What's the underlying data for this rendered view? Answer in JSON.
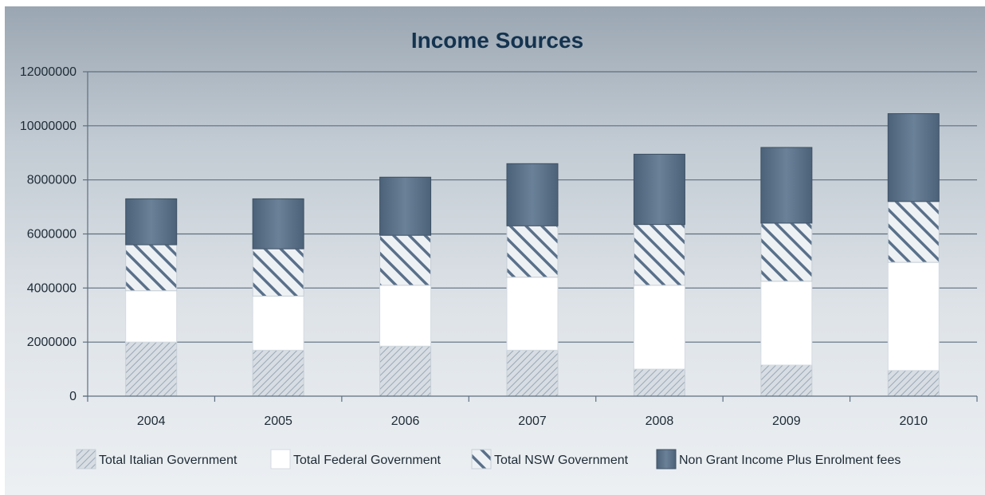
{
  "colors": {
    "italian_fill": "#d7dde3",
    "italian_hatch": "#9aa8b5",
    "federal_fill": "#ffffff",
    "nsw_fill": "#eef1f4",
    "nsw_hatch": "#59708a",
    "nongrant_fill": "#5a7189",
    "gridline": "#5e6f80",
    "axis": "#5e6f80"
  },
  "chart_data": {
    "type": "bar",
    "stacked": true,
    "title": "Income Sources",
    "xlabel": "",
    "ylabel": "",
    "categories": [
      "2004",
      "2005",
      "2006",
      "2007",
      "2008",
      "2009",
      "2010"
    ],
    "ylim": [
      0,
      12000000
    ],
    "yticks": [
      0,
      2000000,
      4000000,
      6000000,
      8000000,
      10000000,
      12000000
    ],
    "ytick_labels": [
      "0",
      "2000000",
      "4000000",
      "6000000",
      "8000000",
      "10000000",
      "12000000"
    ],
    "grid": true,
    "legend_position": "bottom",
    "series": [
      {
        "name": "Total Italian Government",
        "pattern": "light-hatch",
        "values": [
          2000000,
          1700000,
          1850000,
          1700000,
          1000000,
          1150000,
          950000
        ]
      },
      {
        "name": "Total Federal Government",
        "pattern": "solid-white",
        "values": [
          1900000,
          2000000,
          2250000,
          2700000,
          3100000,
          3100000,
          4000000
        ]
      },
      {
        "name": "Total NSW Government",
        "pattern": "dark-hatch",
        "values": [
          1700000,
          1750000,
          1850000,
          1900000,
          2250000,
          2150000,
          2250000
        ]
      },
      {
        "name": "Non Grant Income Plus Enrolment fees",
        "pattern": "solid-dark",
        "values": [
          1700000,
          1850000,
          2150000,
          2300000,
          2600000,
          2800000,
          3250000
        ]
      }
    ]
  }
}
